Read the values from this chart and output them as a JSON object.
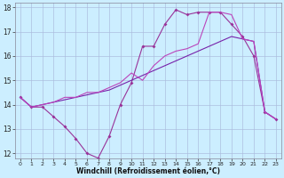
{
  "line1_x": [
    0,
    1,
    2,
    3,
    4,
    5,
    6,
    7,
    8,
    9,
    10,
    11,
    12,
    13,
    14,
    15,
    16,
    17,
    18,
    19,
    20,
    21,
    22,
    23
  ],
  "line1_y": [
    14.3,
    13.9,
    13.9,
    13.5,
    13.1,
    12.6,
    12.0,
    11.8,
    12.7,
    14.0,
    14.9,
    16.4,
    16.4,
    17.3,
    17.9,
    17.7,
    17.8,
    17.8,
    17.8,
    17.3,
    16.8,
    16.0,
    13.7,
    13.4
  ],
  "line2_x": [
    0,
    1,
    2,
    3,
    4,
    5,
    6,
    7,
    8,
    9,
    10,
    11,
    12,
    13,
    14,
    15,
    16,
    17,
    18,
    19,
    20,
    21,
    22,
    23
  ],
  "line2_y": [
    14.3,
    13.9,
    14.0,
    14.1,
    14.2,
    14.3,
    14.4,
    14.5,
    14.6,
    14.8,
    15.0,
    15.2,
    15.4,
    15.6,
    15.8,
    16.0,
    16.2,
    16.4,
    16.6,
    16.8,
    16.7,
    16.6,
    13.7,
    13.4
  ],
  "line3_x": [
    0,
    1,
    2,
    3,
    4,
    5,
    6,
    7,
    8,
    9,
    10,
    11,
    12,
    13,
    14,
    15,
    16,
    17,
    18,
    19,
    20,
    21,
    22,
    23
  ],
  "line3_y": [
    14.3,
    13.9,
    14.0,
    14.1,
    14.3,
    14.3,
    14.5,
    14.5,
    14.7,
    14.9,
    15.3,
    15.0,
    15.6,
    16.0,
    16.2,
    16.3,
    16.5,
    17.8,
    17.8,
    17.7,
    16.7,
    16.6,
    13.7,
    13.4
  ],
  "xlabel": "Windchill (Refroidissement éolien,°C)",
  "xlim": [
    -0.5,
    23.5
  ],
  "ylim": [
    11.8,
    18.2
  ],
  "yticks": [
    12,
    13,
    14,
    15,
    16,
    17,
    18
  ],
  "xticks": [
    0,
    1,
    2,
    3,
    4,
    5,
    6,
    7,
    8,
    9,
    10,
    11,
    12,
    13,
    14,
    15,
    16,
    17,
    18,
    19,
    20,
    21,
    22,
    23
  ],
  "bg_color": "#cceeff",
  "grid_color": "#aabbdd",
  "line_color": "#993399",
  "line2_color": "#7722aa",
  "line3_color": "#bb44bb"
}
